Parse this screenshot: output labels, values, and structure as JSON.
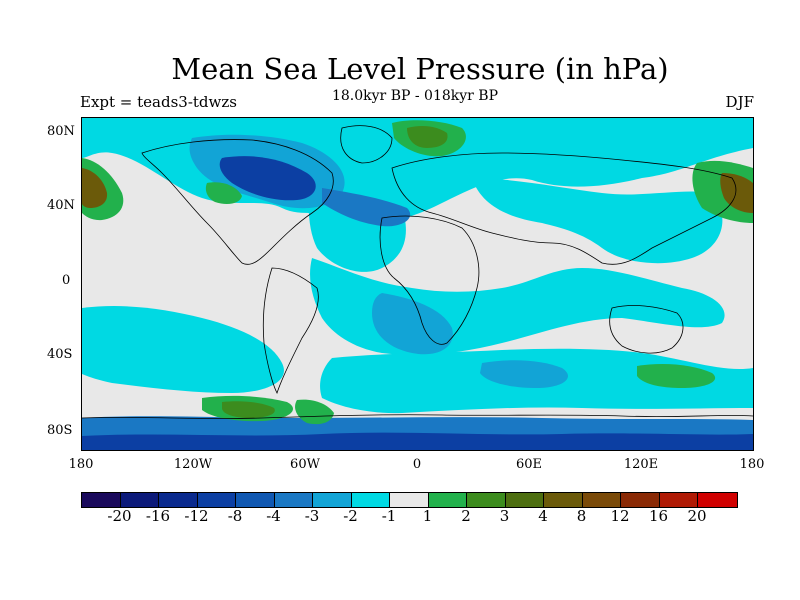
{
  "title": "Mean Sea Level Pressure (in hPa)",
  "subtitle": "18.0kyr BP - 018kyr BP",
  "expt_label": "Expt = teads3-tdwzs",
  "season": "DJF",
  "lat_labels": [
    "80N",
    "40N",
    "0",
    "40S",
    "80S"
  ],
  "lon_labels": [
    "180",
    "120W",
    "60W",
    "0",
    "60E",
    "120E",
    "180"
  ],
  "colorbar": {
    "colors": [
      "#1a0a5c",
      "#0c1a7a",
      "#0a2a8e",
      "#0c3fa3",
      "#1058b2",
      "#1a78c4",
      "#12a4d6",
      "#00d9e3",
      "#e8e8e8",
      "#22b14c",
      "#3c8c1e",
      "#4d6e10",
      "#6b5a0a",
      "#7a4a08",
      "#8a2a05",
      "#b01a05",
      "#d00000"
    ],
    "labels": [
      "-20",
      "-16",
      "-12",
      "-8",
      "-4",
      "-3",
      "-2",
      "-1",
      "1",
      "2",
      "3",
      "4",
      "8",
      "12",
      "16",
      "20"
    ]
  },
  "colors": {
    "neutral": "#e8e8e8",
    "cyan": "#00d9e3",
    "light_blue": "#12a4d6",
    "blue": "#1a78c4",
    "dark_blue": "#0c3fa3",
    "green": "#22b14c",
    "dark_green": "#3c8c1e",
    "olive": "#4d6e10",
    "brown": "#6b5a0a"
  }
}
